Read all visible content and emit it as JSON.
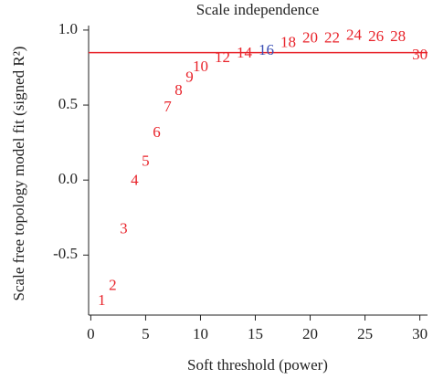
{
  "chart_data": {
    "type": "scatter",
    "title": "Scale independence",
    "x_label": "Soft threshold (power)",
    "y_label": "Scale free topology model fit (signed R²)",
    "x": [
      1,
      2,
      3,
      4,
      5,
      6,
      7,
      8,
      9,
      10,
      12,
      14,
      16,
      18,
      20,
      22,
      24,
      26,
      28,
      30
    ],
    "values": [
      -0.81,
      -0.71,
      -0.33,
      -0.01,
      0.12,
      0.31,
      0.48,
      0.59,
      0.68,
      0.75,
      0.81,
      0.84,
      0.86,
      0.91,
      0.94,
      0.94,
      0.96,
      0.95,
      0.95,
      0.83
    ],
    "point_colors": [
      "#e8232a",
      "#e8232a",
      "#e8232a",
      "#e8232a",
      "#e8232a",
      "#e8232a",
      "#e8232a",
      "#e8232a",
      "#e8232a",
      "#e8232a",
      "#e8232a",
      "#e8232a",
      "#3a4fb5",
      "#e8232a",
      "#e8232a",
      "#e8232a",
      "#e8232a",
      "#e8232a",
      "#e8232a",
      "#e8232a"
    ],
    "hline": {
      "value": 0.85,
      "color": "#e8232a"
    },
    "xlim": [
      -0.2,
      30.7
    ],
    "ylim": [
      -0.9,
      1.03
    ],
    "xticks": [
      0,
      5,
      10,
      15,
      20,
      25,
      30
    ],
    "yticks": [
      -0.5,
      {
        "value": 0,
        "label": "0.0"
      },
      0.5,
      {
        "value": 1,
        "label": "1.0"
      }
    ],
    "grid": false
  }
}
